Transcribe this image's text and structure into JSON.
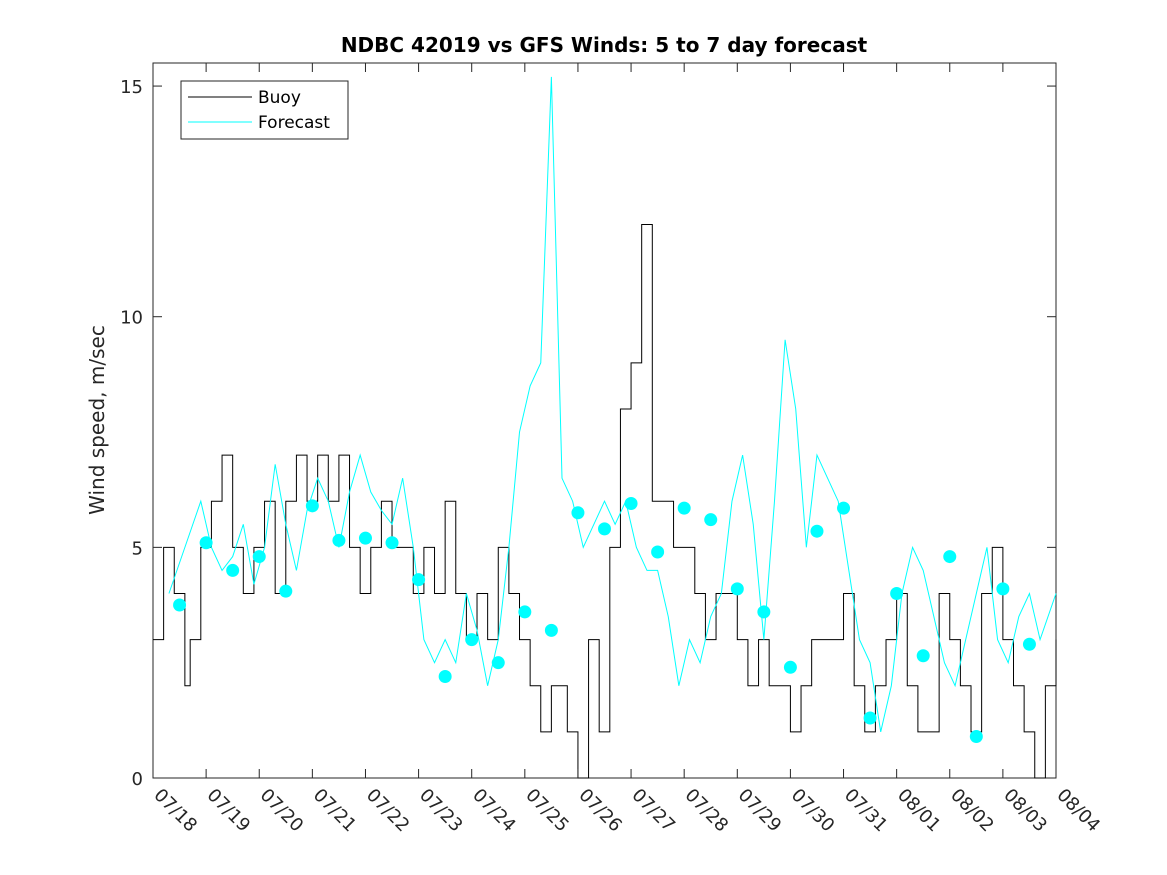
{
  "chart_data": {
    "type": "line",
    "title": "NDBC 42019 vs GFS Winds: 5 to 7 day forecast",
    "xlabel": "",
    "ylabel": "Wind speed, m/sec",
    "xlim": [
      "07/18",
      "08/04"
    ],
    "ylim": [
      0,
      15.5
    ],
    "x_ticks": [
      "07/18",
      "07/19",
      "07/20",
      "07/21",
      "07/22",
      "07/23",
      "07/24",
      "07/25",
      "07/26",
      "07/27",
      "07/28",
      "07/29",
      "07/30",
      "07/31",
      "08/01",
      "08/02",
      "08/03",
      "08/04"
    ],
    "y_ticks": [
      0,
      5,
      10,
      15
    ],
    "y_tick_labels": [
      "0",
      "5",
      "10",
      "15"
    ],
    "grid": false,
    "legend_position": "top-left",
    "colors": {
      "buoy": "#000000",
      "forecast": "#00ffff",
      "axes": "#262626"
    },
    "legend": [
      {
        "label": "Buoy",
        "color": "#000000"
      },
      {
        "label": "Forecast",
        "color": "#00ffff"
      }
    ],
    "series": [
      {
        "name": "Buoy",
        "x_unit": "days after 07/18",
        "x": [
          0,
          0.2,
          0.4,
          0.6,
          0.7,
          0.9,
          1.1,
          1.3,
          1.5,
          1.7,
          1.9,
          2.1,
          2.3,
          2.5,
          2.7,
          2.9,
          3.1,
          3.3,
          3.5,
          3.7,
          3.9,
          4.1,
          4.3,
          4.5,
          4.7,
          4.9,
          5.1,
          5.3,
          5.5,
          5.7,
          5.9,
          6.1,
          6.3,
          6.5,
          6.7,
          6.9,
          7.1,
          7.3,
          7.5,
          7.6,
          7.8,
          8.0,
          8.2,
          8.4,
          8.6,
          8.8,
          9.0,
          9.2,
          9.4,
          9.6,
          9.8,
          10.0,
          10.2,
          10.4,
          10.6,
          10.8,
          11.0,
          11.2,
          11.4,
          11.6,
          11.8,
          12.0,
          12.2,
          12.4,
          12.6,
          12.8,
          13.0,
          13.2,
          13.4,
          13.6,
          13.8,
          14.0,
          14.2,
          14.4,
          14.6,
          14.8,
          15.0,
          15.2,
          15.4,
          15.6,
          15.8,
          16.0,
          16.2,
          16.4,
          16.6,
          16.8,
          17.0
        ],
        "y": [
          3,
          5,
          4,
          2,
          3,
          5,
          6,
          7,
          5,
          4,
          5,
          6,
          4,
          6,
          7,
          6,
          7,
          6,
          7,
          5,
          4,
          5,
          6,
          5,
          5,
          4,
          5,
          4,
          6,
          4,
          3,
          4,
          3,
          5,
          4,
          3,
          2,
          1,
          2,
          2,
          1,
          0,
          3,
          1,
          5,
          8,
          9,
          12,
          6,
          6,
          5,
          5,
          4,
          3,
          4,
          4,
          3,
          2,
          3,
          2,
          2,
          1,
          2,
          3,
          3,
          3,
          4,
          2,
          1,
          2,
          3,
          4,
          2,
          1,
          1,
          4,
          3,
          2,
          1,
          4,
          5,
          3,
          2,
          1,
          0,
          2,
          3
        ]
      },
      {
        "name": "Forecast",
        "x_unit": "days after 07/18",
        "x": [
          0.3,
          0.6,
          0.9,
          1.1,
          1.3,
          1.5,
          1.7,
          1.9,
          2.1,
          2.3,
          2.5,
          2.7,
          2.9,
          3.1,
          3.3,
          3.5,
          3.7,
          3.9,
          4.1,
          4.3,
          4.5,
          4.7,
          4.9,
          5.1,
          5.3,
          5.5,
          5.7,
          5.9,
          6.1,
          6.3,
          6.5,
          6.7,
          6.9,
          7.1,
          7.3,
          7.5,
          7.7,
          7.9,
          8.1,
          8.3,
          8.5,
          8.7,
          8.9,
          9.1,
          9.3,
          9.5,
          9.7,
          9.9,
          10.1,
          10.3,
          10.5,
          10.7,
          10.9,
          11.1,
          11.3,
          11.5,
          11.7,
          11.9,
          12.1,
          12.3,
          12.5,
          12.7,
          12.9,
          13.1,
          13.3,
          13.5,
          13.7,
          13.9,
          14.1,
          14.3,
          14.5,
          14.7,
          14.9,
          15.1,
          15.3,
          15.5,
          15.7,
          15.9,
          16.1,
          16.3,
          16.5,
          16.7,
          17.0
        ],
        "y": [
          4,
          5,
          6,
          5,
          4.5,
          4.8,
          5.5,
          4.2,
          5,
          6.8,
          5.5,
          4.5,
          5.8,
          6.5,
          6,
          5,
          6.2,
          7,
          6.2,
          5.8,
          5.5,
          6.5,
          5,
          3,
          2.5,
          3,
          2.5,
          4,
          3.2,
          2,
          3,
          5,
          7.5,
          8.5,
          9,
          15.2,
          6.5,
          6,
          5,
          5.5,
          6,
          5.5,
          6,
          5,
          4.5,
          4.5,
          3.5,
          2,
          3,
          2.5,
          3.5,
          4,
          6,
          7,
          5.5,
          3,
          6,
          9.5,
          8,
          5,
          7,
          6.5,
          6,
          4.5,
          3,
          2.5,
          1,
          2,
          4,
          5,
          4.5,
          3.5,
          2.5,
          2,
          3,
          4,
          5,
          3,
          2.5,
          3.5,
          4,
          3,
          4
        ]
      },
      {
        "name": "Forecast points",
        "x_unit": "days after 07/18",
        "x": [
          0.5,
          1,
          1.5,
          2,
          2.5,
          3,
          3.5,
          4,
          4.5,
          5,
          5.5,
          6,
          6.5,
          7,
          7.5,
          8,
          8.5,
          9,
          9.5,
          10,
          10.5,
          11,
          11.5,
          12,
          12.5,
          13,
          13.5,
          14,
          14.5,
          15,
          15.5,
          16,
          16.5
        ],
        "y": [
          3.75,
          5.1,
          4.5,
          4.8,
          4.05,
          5.9,
          5.15,
          5.2,
          5.1,
          4.3,
          2.2,
          3,
          2.5,
          3.6,
          3.2,
          5.75,
          5.4,
          5.95,
          4.9,
          5.85,
          5.6,
          4.1,
          3.6,
          2.4,
          5.35,
          5.85,
          1.3,
          4,
          2.65,
          4.8,
          0.9,
          4.1,
          2.9
        ]
      }
    ]
  }
}
